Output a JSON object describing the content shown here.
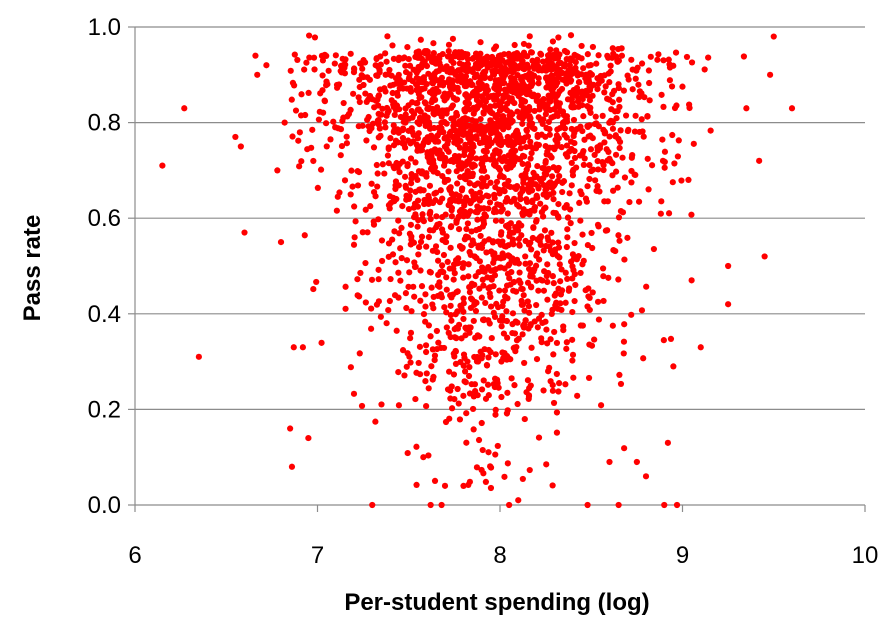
{
  "chart_data": {
    "type": "scatter",
    "title": "",
    "xlabel": "Per-student spending (log)",
    "ylabel": "Pass rate",
    "xlim": [
      6,
      10
    ],
    "ylim": [
      0,
      1
    ],
    "x_ticks": [
      "6",
      "7",
      "8",
      "9",
      "10"
    ],
    "y_ticks": [
      "0.0",
      "0.2",
      "0.4",
      "0.6",
      "0.8",
      "1.0"
    ],
    "grid": "horizontal",
    "legend": "none",
    "marker_color": "#ff0000",
    "series": [
      {
        "points": [
          [
            6.15,
            0.71
          ],
          [
            6.27,
            0.83
          ],
          [
            6.35,
            0.31
          ],
          [
            6.55,
            0.77
          ],
          [
            6.58,
            0.75
          ],
          [
            6.6,
            0.57
          ],
          [
            6.66,
            0.94
          ],
          [
            6.67,
            0.9
          ],
          [
            6.72,
            0.92
          ],
          [
            6.78,
            0.7
          ],
          [
            6.8,
            0.55
          ],
          [
            6.82,
            0.8
          ],
          [
            6.85,
            0.16
          ],
          [
            6.86,
            0.08
          ],
          [
            6.87,
            0.33
          ],
          [
            6.95,
            0.14
          ],
          [
            6.92,
            0.33
          ],
          [
            9.1,
            0.33
          ],
          [
            9.25,
            0.42
          ],
          [
            9.25,
            0.5
          ],
          [
            9.45,
            0.52
          ],
          [
            9.42,
            0.72
          ],
          [
            9.35,
            0.83
          ],
          [
            9.6,
            0.83
          ],
          [
            9.5,
            0.98
          ],
          [
            9.48,
            0.9
          ],
          [
            9.05,
            0.47
          ],
          [
            8.95,
            0.29
          ],
          [
            8.92,
            0.13
          ],
          [
            8.9,
            0.0
          ],
          [
            8.97,
            0.0
          ],
          [
            7.3,
            0.0
          ],
          [
            7.62,
            0.0
          ],
          [
            7.68,
            0.0
          ],
          [
            8.05,
            0.0
          ],
          [
            8.1,
            0.01
          ],
          [
            8.48,
            0.0
          ],
          [
            8.65,
            0.0
          ],
          [
            8.8,
            0.06
          ],
          [
            8.75,
            0.09
          ],
          [
            8.6,
            0.09
          ],
          [
            7.58,
            0.1
          ],
          [
            7.8,
            0.04
          ]
        ]
      }
    ]
  }
}
